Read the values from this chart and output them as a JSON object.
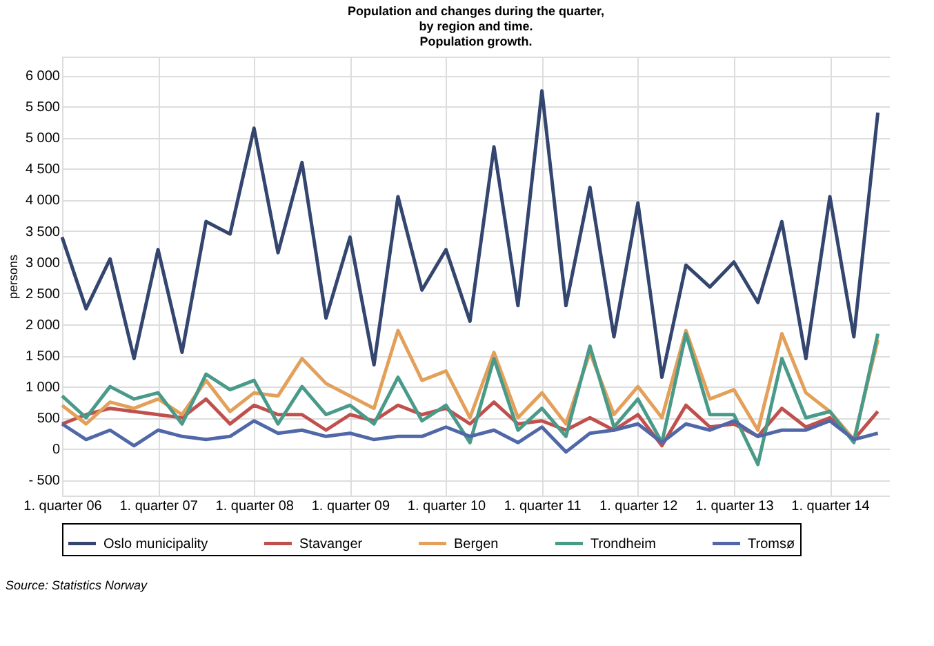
{
  "chart_data": {
    "type": "line",
    "title": "Population and changes during the quarter,\nby region and time.\nPopulation growth.",
    "ylabel": "persons",
    "categories": [
      "1. quarter 06",
      null,
      null,
      null,
      "1. quarter 07",
      null,
      null,
      null,
      "1. quarter 08",
      null,
      null,
      null,
      "1. quarter 09",
      null,
      null,
      null,
      "1. quarter 10",
      null,
      null,
      null,
      "1. quarter 11",
      null,
      null,
      null,
      "1. quarter 12",
      null,
      null,
      null,
      "1. quarter 13",
      null,
      null,
      null,
      "1. quarter 14",
      null,
      null
    ],
    "series": [
      {
        "name": "Oslo municipality",
        "color": "#34466f",
        "values": [
          3400,
          2250,
          3050,
          1450,
          3200,
          1550,
          3650,
          3450,
          5150,
          3150,
          4600,
          2100,
          3400,
          1350,
          4050,
          2550,
          3200,
          2050,
          4850,
          2300,
          5750,
          2300,
          4200,
          1800,
          3950,
          1150,
          2950,
          2600,
          3000,
          2350,
          3650,
          1450,
          4050,
          1800,
          5400
        ]
      },
      {
        "name": "Stavanger",
        "color": "#c0504d",
        "values": [
          400,
          550,
          650,
          600,
          550,
          500,
          800,
          400,
          700,
          550,
          550,
          300,
          550,
          450,
          700,
          550,
          650,
          400,
          750,
          400,
          450,
          300,
          500,
          300,
          550,
          50,
          700,
          350,
          400,
          200,
          650,
          350,
          500,
          150,
          600
        ]
      },
      {
        "name": "Bergen",
        "color": "#e3a05a",
        "values": [
          700,
          400,
          750,
          650,
          800,
          550,
          1100,
          600,
          900,
          850,
          1450,
          1050,
          850,
          650,
          1900,
          1100,
          1250,
          500,
          1550,
          500,
          900,
          400,
          1550,
          550,
          1000,
          500,
          1900,
          800,
          950,
          300,
          1850,
          900,
          600,
          150,
          1750
        ]
      },
      {
        "name": "Trondheim",
        "color": "#4a9a8a",
        "values": [
          850,
          500,
          1000,
          800,
          900,
          400,
          1200,
          950,
          1100,
          400,
          1000,
          550,
          700,
          400,
          1150,
          450,
          700,
          100,
          1450,
          300,
          650,
          200,
          1650,
          350,
          800,
          100,
          1850,
          550,
          550,
          -250,
          1450,
          500,
          600,
          100,
          1850
        ]
      },
      {
        "name": "Tromsø",
        "color": "#5068a8",
        "values": [
          400,
          150,
          300,
          50,
          300,
          200,
          150,
          200,
          450,
          250,
          300,
          200,
          250,
          150,
          200,
          200,
          350,
          200,
          300,
          100,
          350,
          -50,
          250,
          300,
          400,
          100,
          400,
          300,
          450,
          200,
          300,
          300,
          450,
          150,
          250
        ]
      }
    ],
    "ylim": [
      -750,
      6300
    ],
    "yticks": [
      {
        "value": -500,
        "label": "- 500"
      },
      0,
      500,
      {
        "value": 1000,
        "label": "1 000"
      },
      {
        "value": 1500,
        "label": "1 500"
      },
      {
        "value": 2000,
        "label": "2 000"
      },
      {
        "value": 2500,
        "label": "2 500"
      },
      {
        "value": 3000,
        "label": "3 000"
      },
      {
        "value": 3500,
        "label": "3 500"
      },
      {
        "value": 4000,
        "label": "4 000"
      },
      {
        "value": 4500,
        "label": "4 500"
      },
      {
        "value": 5000,
        "label": "5 000"
      },
      {
        "value": 5500,
        "label": "5 500"
      },
      {
        "value": 6000,
        "label": "6 000"
      }
    ],
    "grid": true,
    "legend": "bottom",
    "line_style": "solid",
    "annotations": [
      "Source: Statistics Norway"
    ]
  }
}
